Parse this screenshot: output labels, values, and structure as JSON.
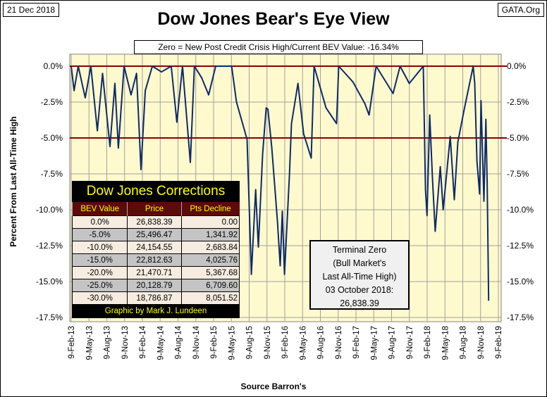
{
  "header": {
    "date": "21 Dec 2018",
    "site": "GATA.Org",
    "title": "Dow Jones Bear's Eye View",
    "subtitle": "Zero = New Post Credit Crisis High/Current BEV Value:  -16.34%"
  },
  "corrections": {
    "title": "Dow Jones Corrections",
    "columns": [
      "BEV Value",
      "Price",
      "Pts Decline"
    ],
    "rows": [
      [
        "0.0%",
        "26,838.39",
        "0.00"
      ],
      [
        "-5.0%",
        "25,496.47",
        "1,341.92"
      ],
      [
        "-10.0%",
        "24,154.55",
        "2,683.84"
      ],
      [
        "-15.0%",
        "22,812.63",
        "4,025.76"
      ],
      [
        "-20.0%",
        "21,470.71",
        "5,367.68"
      ],
      [
        "-25.0%",
        "20,128.79",
        "6,709.60"
      ],
      [
        "-30.0%",
        "18,786.87",
        "8,051.52"
      ]
    ],
    "credit": "Graphic by Mark J. Lundeen"
  },
  "terminal": {
    "line1": "Terminal Zero",
    "line2": "(Bull Market's",
    "line3": "Last All-Time High)",
    "line4": "03 October 2018:",
    "line5": "26,838.39"
  },
  "chart_data": {
    "type": "line",
    "title": "Dow Jones Bear's Eye View",
    "xlabel": "Source Barron's",
    "ylabel": "Percent From Last All-Time High",
    "ylim": [
      -17.5,
      0
    ],
    "xlim": [
      "2013-02-09",
      "2019-02-09"
    ],
    "grid": true,
    "y_ticks": [
      "0.0%",
      "-2.5%",
      "-5.0%",
      "-7.5%",
      "-10.0%",
      "-12.5%",
      "-15.0%",
      "-17.5%"
    ],
    "x_ticks": [
      "9-Feb-13",
      "9-May-13",
      "9-Aug-13",
      "9-Nov-13",
      "9-Feb-14",
      "9-May-14",
      "9-Aug-14",
      "9-Nov-14",
      "9-Feb-15",
      "9-May-15",
      "9-Aug-15",
      "9-Nov-15",
      "9-Feb-16",
      "9-May-16",
      "9-Aug-16",
      "9-Nov-16",
      "9-Feb-17",
      "9-May-17",
      "9-Aug-17",
      "9-Nov-17",
      "9-Feb-18",
      "9-May-18",
      "9-Aug-18",
      "9-Nov-18",
      "9-Feb-19"
    ],
    "reference_lines": [
      0,
      -5
    ],
    "colors": {
      "line": "#0d2a6b",
      "reference": "#8b0000",
      "plot_bg": "#fffacd"
    },
    "series": [
      {
        "points": [
          [
            "2013-02-09",
            0
          ],
          [
            "2013-02-24",
            -1.7
          ],
          [
            "2013-03-17",
            0
          ],
          [
            "2013-04-22",
            -2.2
          ],
          [
            "2013-05-21",
            0
          ],
          [
            "2013-06-23",
            -4.5
          ],
          [
            "2013-07-20",
            -0.5
          ],
          [
            "2013-08-27",
            -5.6
          ],
          [
            "2013-09-21",
            -1.2
          ],
          [
            "2013-10-09",
            -5.7
          ],
          [
            "2013-11-07",
            0
          ],
          [
            "2013-12-13",
            -2.0
          ],
          [
            "2014-01-10",
            -0.5
          ],
          [
            "2014-02-02",
            -7.2
          ],
          [
            "2014-02-24",
            -1.7
          ],
          [
            "2014-04-01",
            0
          ],
          [
            "2014-05-18",
            -0.4
          ],
          [
            "2014-07-07",
            0
          ],
          [
            "2014-08-05",
            -3.9
          ],
          [
            "2014-09-03",
            0
          ],
          [
            "2014-10-13",
            -6.7
          ],
          [
            "2014-11-03",
            0
          ],
          [
            "2014-12-10",
            -0.8
          ],
          [
            "2015-01-15",
            -2.0
          ],
          [
            "2015-02-20",
            0
          ],
          [
            "2015-05-13",
            0
          ],
          [
            "2015-06-07",
            -2.5
          ],
          [
            "2015-07-31",
            -5.1
          ],
          [
            "2015-08-22",
            -14.5
          ],
          [
            "2015-09-13",
            -8.6
          ],
          [
            "2015-09-27",
            -12.6
          ],
          [
            "2015-10-19",
            -6.1
          ],
          [
            "2015-11-06",
            -2.9
          ],
          [
            "2015-11-15",
            -3.0
          ],
          [
            "2015-12-05",
            -5.7
          ],
          [
            "2016-01-03",
            -10.8
          ],
          [
            "2016-01-17",
            -13.9
          ],
          [
            "2016-01-28",
            -10.1
          ],
          [
            "2016-02-08",
            -14.5
          ],
          [
            "2016-03-04",
            -7.7
          ],
          [
            "2016-03-15",
            -4.0
          ],
          [
            "2016-04-17",
            -1.2
          ],
          [
            "2016-05-16",
            -4.7
          ],
          [
            "2016-06-24",
            -6.4
          ],
          [
            "2016-07-09",
            0
          ],
          [
            "2016-09-08",
            -2.9
          ],
          [
            "2016-11-01",
            -4.0
          ],
          [
            "2016-11-12",
            0
          ],
          [
            "2017-01-24",
            -1.1
          ],
          [
            "2017-03-26",
            -2.6
          ],
          [
            "2017-04-17",
            -3.4
          ],
          [
            "2017-05-23",
            0
          ],
          [
            "2017-08-18",
            -1.9
          ],
          [
            "2017-09-23",
            0
          ],
          [
            "2017-11-09",
            -1.2
          ],
          [
            "2018-01-20",
            0
          ],
          [
            "2018-01-31",
            -8.6
          ],
          [
            "2018-02-08",
            -10.4
          ],
          [
            "2018-02-22",
            -3.4
          ],
          [
            "2018-03-08",
            -7.8
          ],
          [
            "2018-03-22",
            -11.5
          ],
          [
            "2018-04-17",
            -7.0
          ],
          [
            "2018-05-02",
            -10.0
          ],
          [
            "2018-06-07",
            -4.9
          ],
          [
            "2018-06-28",
            -9.3
          ],
          [
            "2018-07-16",
            -5.3
          ],
          [
            "2018-08-18",
            -3.0
          ],
          [
            "2018-10-03",
            0
          ],
          [
            "2018-10-11",
            -1.2
          ],
          [
            "2018-10-22",
            -6.6
          ],
          [
            "2018-11-05",
            -8.9
          ],
          [
            "2018-11-12",
            -2.4
          ],
          [
            "2018-11-27",
            -9.4
          ],
          [
            "2018-12-07",
            -3.7
          ],
          [
            "2018-12-14",
            -8.4
          ],
          [
            "2018-12-17",
            -11.9
          ],
          [
            "2018-12-21",
            -16.34
          ]
        ]
      }
    ]
  }
}
